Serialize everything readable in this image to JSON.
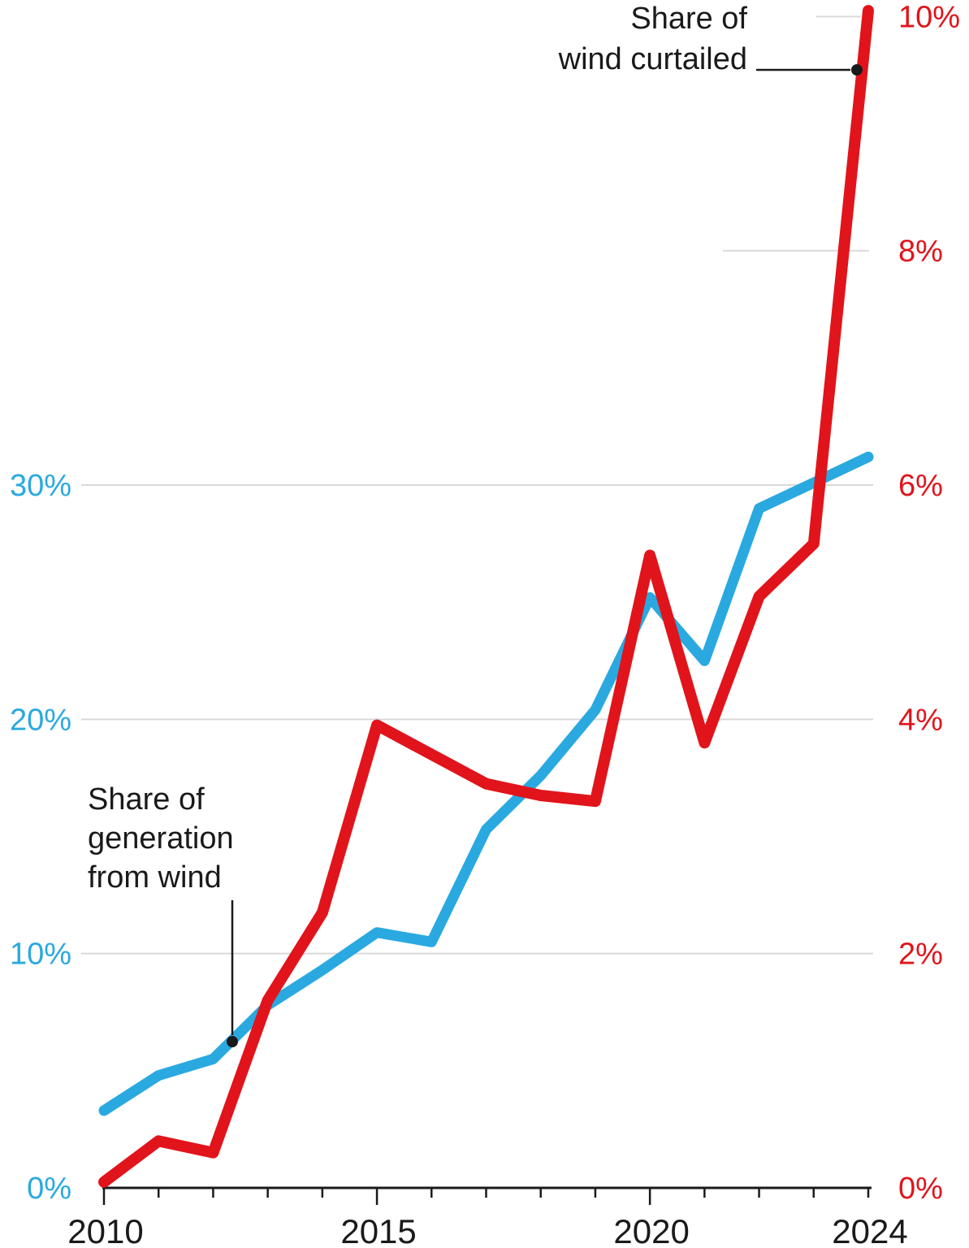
{
  "chart_data": {
    "type": "line",
    "x": [
      2010,
      2011,
      2012,
      2013,
      2014,
      2015,
      2016,
      2017,
      2018,
      2019,
      2020,
      2021,
      2022,
      2023,
      2024
    ],
    "series": [
      {
        "name": "Share of generation from wind",
        "axis": "left",
        "color": "#2aa9e0",
        "values": [
          3.3,
          4.8,
          5.5,
          7.8,
          9.3,
          10.9,
          10.5,
          15.3,
          17.6,
          20.4,
          25.2,
          22.5,
          29.0,
          30.1,
          31.2
        ]
      },
      {
        "name": "Share of wind curtailed",
        "axis": "right",
        "color": "#e1141b",
        "values": [
          0.05,
          0.4,
          0.3,
          1.6,
          2.35,
          3.95,
          3.7,
          3.45,
          3.35,
          3.3,
          5.4,
          3.8,
          5.05,
          5.5,
          10.05
        ]
      }
    ],
    "left_axis": {
      "label_color": "#2aa9e0",
      "ylim": [
        0,
        50
      ],
      "ticks": [
        {
          "v": 0,
          "label": "0%"
        },
        {
          "v": 10,
          "label": "10%"
        },
        {
          "v": 20,
          "label": "20%"
        },
        {
          "v": 30,
          "label": "30%"
        }
      ]
    },
    "right_axis": {
      "label_color": "#e1141b",
      "ylim": [
        0,
        10.1
      ],
      "ticks": [
        {
          "v": 0,
          "label": "0%"
        },
        {
          "v": 2,
          "label": "2%"
        },
        {
          "v": 4,
          "label": "4%"
        },
        {
          "v": 6,
          "label": "6%"
        },
        {
          "v": 8,
          "label": "8%"
        },
        {
          "v": 10,
          "label": "10%"
        }
      ]
    },
    "x_axis": {
      "major_tick_years": [
        2010,
        2015,
        2020
      ],
      "labels": [
        {
          "year": 2010,
          "label": "2010"
        },
        {
          "year": 2015,
          "label": "2015"
        },
        {
          "year": 2020,
          "label": "2020"
        },
        {
          "year": 2024,
          "label": "2024"
        }
      ]
    },
    "grid": "on",
    "legend_position": "inline-annotations",
    "title": ""
  },
  "annotations": [
    {
      "id": "wind-generation",
      "lines": [
        "Share of",
        "generation",
        "from wind"
      ]
    },
    {
      "id": "wind-curtailed",
      "lines": [
        "Share of",
        "wind curtailed"
      ]
    }
  ],
  "colors": {
    "generation_line": "#2aa9e0",
    "curtailed_line": "#e1141b",
    "gridline": "#d9d9d9",
    "axis": "#1a1a1a",
    "annotation_text": "#1a1a1a",
    "background": "#ffffff"
  }
}
